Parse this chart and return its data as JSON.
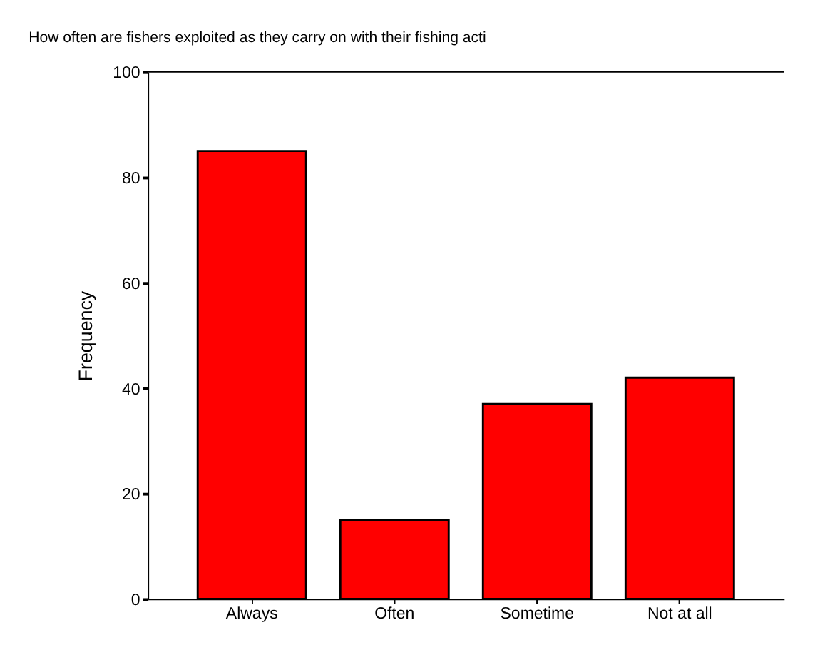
{
  "chart_data": {
    "type": "bar",
    "title": "How often are fishers exploited as they carry on with their fishing acti",
    "ylabel": "Frequency",
    "categories": [
      "Always",
      "Often",
      "Sometime",
      "Not at all"
    ],
    "values": [
      85,
      15,
      37,
      42
    ],
    "color": "#ff0000",
    "ylim": [
      0,
      100
    ],
    "yticks": [
      0,
      20,
      40,
      60,
      80,
      100
    ]
  }
}
